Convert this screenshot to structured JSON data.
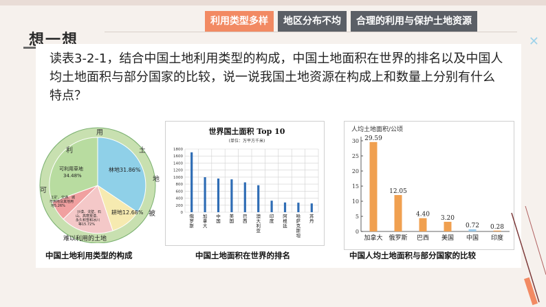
{
  "tabs": [
    {
      "label": "利用类型多样",
      "active": true
    },
    {
      "label": "地区分布不均",
      "active": false
    },
    {
      "label": "合理的利用与保护土地资源",
      "active": false
    }
  ],
  "section_title": "想一想",
  "question": "读表3-2-1，结合中国土地利用类型的构成，中国土地面积在世界的排名以及中国人均土地面积与部分国家的比较，说一说我国土地资源在构成上和数量上分别有什么特点？",
  "figure1": {
    "caption": "中国土地利用类型的构成",
    "outer_ring_top": [
      "利",
      "用",
      "土",
      "地"
    ],
    "outer_ring_left": "可",
    "outer_ring_right": "被",
    "inner_labels": {
      "grassland": "可利用草地 34.48%",
      "forest": "林地31.86%",
      "farmland": "耕地12.68%",
      "other_used": "工矿、交通、城市用地及其他用地5.26%",
      "unused": "沙漠、戈壁、石山、高寒荒漠、永久积雪和冰川等15.72%"
    },
    "bottom_label": "难以利用的土地"
  },
  "figure2": {
    "caption": "中国土地面积在世界的排名",
    "chart_data": {
      "type": "bar",
      "title": "世界国土面积 Top 10",
      "subtitle": "(单位：万平方千米)",
      "categories": [
        "俄罗斯",
        "加拿大",
        "中国",
        "美国",
        "巴西",
        "澳大利亚",
        "印度",
        "阿根廷",
        "哈萨克斯坦",
        "苏丹"
      ],
      "values": [
        1707,
        998,
        960,
        937,
        851,
        769,
        329,
        278,
        272,
        251
      ],
      "ylim": [
        0,
        1800
      ],
      "yticks": [
        0,
        200,
        400,
        600,
        800,
        1000,
        1200,
        1400,
        1600,
        1800
      ],
      "grid": true,
      "color": "#2f6db5"
    }
  },
  "figure3": {
    "caption": "中国人均土地面积与部分国家的比较",
    "chart_data": {
      "type": "bar",
      "ylabel": "人均土地面积/公顷",
      "categories": [
        "加拿大",
        "俄罗斯",
        "巴西",
        "美国",
        "中国",
        "印度"
      ],
      "values": [
        29.59,
        12.05,
        4.4,
        3.2,
        0.72,
        0.28
      ],
      "value_labels": [
        "29.59",
        "12.05",
        "4.40",
        "3.20",
        "0.72",
        "0.28"
      ],
      "ylim": [
        0,
        30
      ],
      "yticks": [
        0,
        5,
        10,
        15,
        20,
        25,
        30
      ],
      "color": "#f0a050",
      "highlight_color": "#9ac8e8"
    }
  },
  "colors": {
    "tab_active": "#f28a63",
    "tab_inactive": "#5b5f66",
    "ring": "#c8e0b0",
    "forest": "#8fd0e8",
    "grassland": "#b8dca0",
    "farmland": "#f6eab0",
    "unused": "#f4c8c8",
    "other_used": "#f0a0a0"
  }
}
